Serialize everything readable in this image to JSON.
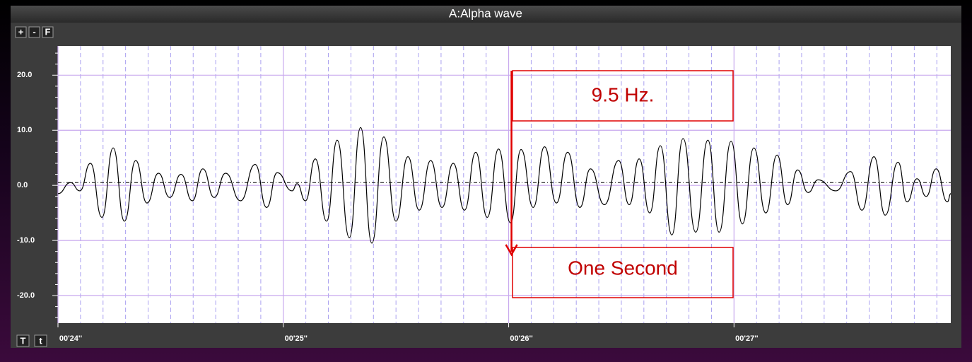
{
  "chart_data": {
    "type": "line",
    "title": "A:Alpha wave",
    "controls_top": [
      "+",
      "-",
      "F"
    ],
    "controls_bottom": [
      "T",
      "t"
    ],
    "xlim": [
      24,
      27.962
    ],
    "ylim": [
      -25,
      25.3
    ],
    "xticks": [
      {
        "value": 24,
        "label": "00'24''"
      },
      {
        "value": 25,
        "label": "00'25''"
      },
      {
        "value": 26,
        "label": "00'26''"
      },
      {
        "value": 27,
        "label": "00'27''"
      }
    ],
    "xminorticks": [
      24.1,
      24.2,
      24.3,
      24.4,
      24.5,
      24.6,
      24.7,
      24.8,
      24.9,
      25.1,
      25.2,
      25.3,
      25.4,
      25.5,
      25.6,
      25.7,
      25.8,
      25.9,
      26.1,
      26.2,
      26.3,
      26.4,
      26.5,
      26.6,
      26.7,
      26.8,
      26.9,
      27.1,
      27.2,
      27.3,
      27.4,
      27.5,
      27.6,
      27.7,
      27.8,
      27.9
    ],
    "yticks": [
      {
        "value": 20,
        "label": "20.0"
      },
      {
        "value": 10,
        "label": "10.0"
      },
      {
        "value": 0,
        "label": "0.0"
      },
      {
        "value": -10,
        "label": "-10.0"
      },
      {
        "value": -20,
        "label": "-20.0"
      }
    ],
    "yminorticks": [
      -24,
      -22,
      -18,
      -16,
      -14,
      -12,
      -8,
      -6,
      -4,
      -2,
      2,
      4,
      6,
      8,
      12,
      14,
      16,
      18,
      22,
      24
    ],
    "grid": true,
    "reference_line": 0.5,
    "series": [
      {
        "color": "#000000",
        "x": [
          24.0,
          24.056,
          24.097,
          24.144,
          24.195,
          24.245,
          24.295,
          24.345,
          24.395,
          24.446,
          24.496,
          24.546,
          24.596,
          24.643,
          24.693,
          24.744,
          24.81,
          24.875,
          24.926,
          24.973,
          25.039,
          25.061,
          25.098,
          25.142,
          25.192,
          25.239,
          25.293,
          25.343,
          25.393,
          25.446,
          25.5,
          25.553,
          25.603,
          25.654,
          25.704,
          25.754,
          25.804,
          25.854,
          25.905,
          25.955,
          26.008,
          26.055,
          26.109,
          26.159,
          26.212,
          26.262,
          26.316,
          26.363,
          26.425,
          26.488,
          26.535,
          26.579,
          26.626,
          26.673,
          26.724,
          26.774,
          26.83,
          26.884,
          26.934,
          26.987,
          27.037,
          27.088,
          27.141,
          27.191,
          27.238,
          27.282,
          27.329,
          27.373,
          27.452,
          27.517,
          27.568,
          27.621,
          27.671,
          27.728,
          27.768,
          27.812,
          27.853,
          27.897,
          27.947,
          27.962
        ],
        "values": [
          -1.5,
          0.5,
          -1,
          4,
          -5.8,
          6.8,
          -6.5,
          4.5,
          -3.2,
          2.2,
          -2.2,
          2,
          -2.8,
          3,
          -2.2,
          2.2,
          -2.8,
          3.8,
          -4,
          2.3,
          -1,
          0.3,
          -2.8,
          4.8,
          -6.5,
          8.2,
          -9.5,
          10.5,
          -10.5,
          8.8,
          -6.5,
          5.2,
          -4.5,
          4.5,
          -4,
          4,
          -4.5,
          6,
          -5.8,
          6.6,
          -6.8,
          6.5,
          -4,
          7,
          -3.2,
          6,
          -4,
          3,
          -3.5,
          4.5,
          -3.5,
          4.8,
          -5,
          7.2,
          -9,
          8.5,
          -8.5,
          8.2,
          -8.5,
          8,
          -7,
          6.8,
          -5,
          5.5,
          -3.5,
          2.8,
          -1.3,
          1,
          -1,
          2.5,
          -4.5,
          5.2,
          -5.4,
          4.2,
          -3,
          1.2,
          -2,
          3,
          -3,
          -1.5
        ]
      }
    ],
    "annotations": [
      "9.5 Hz.",
      "One Second"
    ]
  }
}
